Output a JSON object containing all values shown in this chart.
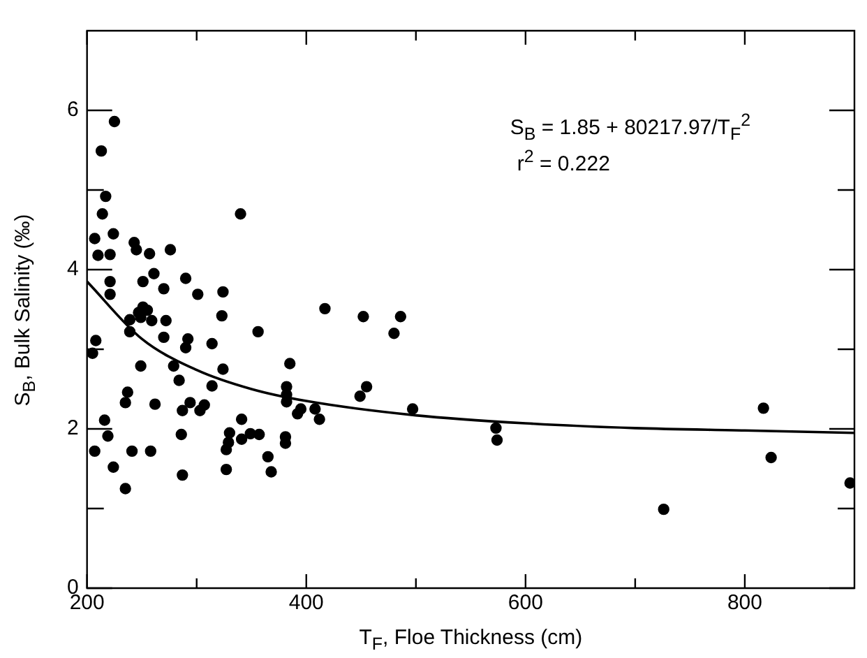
{
  "chart_data": {
    "type": "scatter",
    "xlabel": "T$_{F}$, Floe Thickness (cm)",
    "ylabel": "S$_{B}$, Bulk Salinity (‰)",
    "annotations": [
      "S$_{B}$ = 1.85 + 80217.97/T$_{F}$$^{2}$",
      "r$^{2}$ = 0.222"
    ],
    "xlim": [
      200,
      900
    ],
    "xticks": [
      200,
      {
        "value": 300,
        "label": null
      },
      400,
      {
        "value": 500,
        "label": null
      },
      600,
      {
        "value": 700,
        "label": null
      },
      800
    ],
    "ylim": [
      0,
      7
    ],
    "yticks": [
      0,
      {
        "value": 1,
        "label": null
      },
      2,
      {
        "value": 3,
        "label": null
      },
      4,
      {
        "value": 5,
        "label": null
      },
      6
    ],
    "grid": false,
    "legend": false,
    "marker": "circle",
    "series": [
      {
        "color": "#000000",
        "x": [
          207,
          210,
          213,
          225,
          217,
          214,
          224,
          221,
          221,
          221,
          205,
          208,
          207,
          216,
          219,
          224,
          235,
          235,
          237,
          239,
          239,
          241,
          243,
          245,
          251,
          249,
          251,
          255,
          247,
          249,
          257,
          259,
          261,
          258,
          262,
          270,
          272,
          270,
          276,
          279,
          284,
          286,
          287,
          287,
          290,
          292,
          290,
          294,
          301,
          303,
          307,
          314,
          314,
          324,
          323,
          324,
          327,
          327,
          330,
          329,
          340,
          341,
          341,
          349,
          357,
          356,
          365,
          368,
          381,
          381,
          382,
          382,
          382,
          385,
          392,
          395,
          408,
          412,
          417,
          449,
          452,
          455,
          480,
          486,
          497,
          573,
          574,
          726,
          817,
          824,
          896
        ],
        "values": [
          4.39,
          4.18,
          5.49,
          5.86,
          4.92,
          4.7,
          4.45,
          4.19,
          3.85,
          3.69,
          2.95,
          3.11,
          1.72,
          2.11,
          1.91,
          1.52,
          1.25,
          2.33,
          2.46,
          3.22,
          3.37,
          1.72,
          4.34,
          4.25,
          3.85,
          3.4,
          3.53,
          3.49,
          3.46,
          2.79,
          4.2,
          3.36,
          3.95,
          1.72,
          2.31,
          3.76,
          3.36,
          3.15,
          4.25,
          2.79,
          2.61,
          1.93,
          1.42,
          2.23,
          3.89,
          3.13,
          3.02,
          2.33,
          3.69,
          2.23,
          2.3,
          3.07,
          2.54,
          3.72,
          3.42,
          2.75,
          1.74,
          1.49,
          1.95,
          1.83,
          4.7,
          2.12,
          1.87,
          1.94,
          1.93,
          3.22,
          1.65,
          1.46,
          1.9,
          1.82,
          2.53,
          2.43,
          2.34,
          2.82,
          2.19,
          2.25,
          2.25,
          2.12,
          3.51,
          2.41,
          3.41,
          2.53,
          3.2,
          3.41,
          2.25,
          2.01,
          1.86,
          0.99,
          2.26,
          1.64,
          1.32
        ]
      },
      {
        "type": "line",
        "color": "#000000",
        "marker": "none",
        "line_style": "solid",
        "x": [
          200,
          250,
          300,
          350,
          400,
          500,
          600,
          700,
          800,
          900
        ],
        "values": [
          3.85,
          3.13,
          2.74,
          2.5,
          2.35,
          2.17,
          2.07,
          2.01,
          1.98,
          1.95
        ]
      }
    ]
  }
}
